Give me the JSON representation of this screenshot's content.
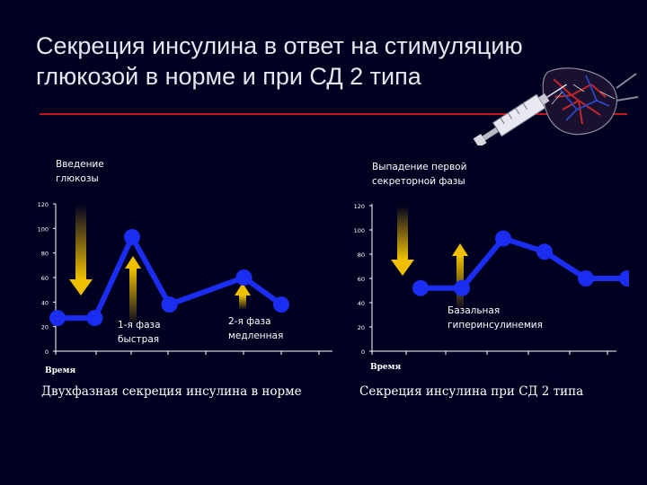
{
  "title": {
    "line1": "Секреция инсулина в ответ на стимуляцию",
    "line2": "глюкозой в норме и при СД 2 типа"
  },
  "colors": {
    "background": "#000021",
    "rule": "#c4151c",
    "series": "#1a2df0",
    "arrow": "#f0c000"
  },
  "icons": {
    "illustration": "syringe-pancreas-icon"
  },
  "chart_data": [
    {
      "type": "line",
      "caption": "Двухфазная секреция инсулина в норме",
      "xlabel": "Время",
      "ylabel": "",
      "ylim": [
        0,
        120
      ],
      "yticks": [
        "0",
        "20",
        "40",
        "60",
        "80",
        "100",
        "120"
      ],
      "x": [
        1,
        2,
        3,
        4,
        5,
        6,
        7
      ],
      "series": [
        {
          "values": [
            27,
            27,
            93,
            38,
            null,
            60,
            38
          ]
        }
      ],
      "annotations": {
        "top": "Введение глюкозы",
        "phase1": "1-я фаза быстрая",
        "phase2": "2-я фаза медленная"
      }
    },
    {
      "type": "line",
      "caption": "Секреция инсулина при СД 2 типа",
      "xlabel": "Время",
      "ylabel": "",
      "ylim": [
        0,
        120
      ],
      "yticks": [
        "0",
        "20",
        "40",
        "60",
        "80",
        "100",
        "120"
      ],
      "x": [
        1,
        2,
        3,
        4,
        5,
        6
      ],
      "series": [
        {
          "values": [
            52,
            52,
            93,
            82,
            60,
            60
          ]
        }
      ],
      "annotations": {
        "top": "Выпадение первой секреторной фазы",
        "basal": "Базальная гиперинсулинемия"
      }
    }
  ]
}
